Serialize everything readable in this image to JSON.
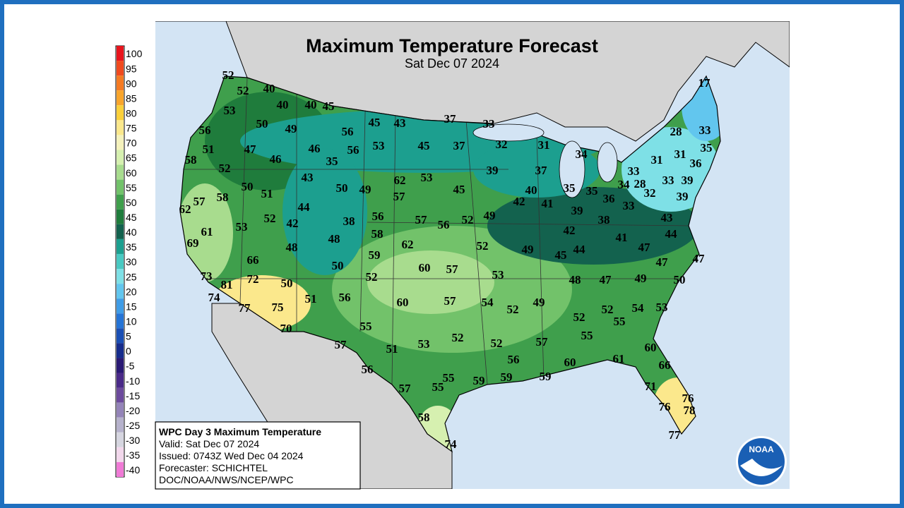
{
  "title": "Maximum Temperature Forecast",
  "subtitle": "Sat Dec 07 2024",
  "legend": {
    "labels": [
      100,
      95,
      90,
      85,
      80,
      75,
      70,
      65,
      60,
      55,
      50,
      45,
      40,
      35,
      30,
      25,
      20,
      15,
      10,
      5,
      0,
      -5,
      -10,
      -15,
      -20,
      -25,
      -30,
      -35,
      -40
    ],
    "colors": [
      "#e8141c",
      "#f04a1e",
      "#f57a22",
      "#f8a52c",
      "#fbd03a",
      "#fbe88c",
      "#f5f2bc",
      "#d6f0b0",
      "#a8dc8e",
      "#72c26a",
      "#3f9f4c",
      "#1f7c3c",
      "#13624e",
      "#1c9f8f",
      "#49c9c2",
      "#7ee0e6",
      "#62c6ee",
      "#3f9ce6",
      "#2574d6",
      "#1a4fb4",
      "#162c8c",
      "#2a1a74",
      "#4a2a88",
      "#6c4a9c",
      "#9484b8",
      "#b6b2cc",
      "#d6d6e0",
      "#f2d8ec",
      "#f07ad6"
    ]
  },
  "temps": [
    52,
    52,
    40,
    40,
    40,
    45,
    53,
    50,
    49,
    56,
    51,
    47,
    46,
    46,
    56,
    45,
    56,
    53,
    35,
    43,
    58,
    52,
    50,
    51,
    50,
    49,
    62,
    53,
    57,
    45,
    43,
    37,
    33,
    45,
    37,
    32,
    31,
    34,
    39,
    37,
    40,
    42,
    41,
    35,
    35,
    36,
    33,
    34,
    28,
    32,
    33,
    39,
    31,
    31,
    36,
    35,
    28,
    33,
    17,
    33,
    39,
    43,
    44,
    39,
    38,
    42,
    41,
    47,
    44,
    45,
    49,
    52,
    49,
    52,
    56,
    57,
    56,
    58,
    62,
    59,
    57,
    60,
    53,
    50,
    48,
    38,
    42,
    48,
    44,
    52,
    53,
    58,
    57,
    62,
    61,
    69,
    66,
    72,
    73,
    81,
    74,
    50,
    77,
    75,
    70,
    51,
    56,
    52,
    55,
    60,
    57,
    54,
    52,
    49,
    48,
    47,
    49,
    50,
    47,
    47,
    52,
    52,
    55,
    54,
    53,
    55,
    52,
    53,
    52,
    57,
    51,
    57,
    56,
    56,
    60,
    61,
    60,
    66,
    57,
    55,
    55,
    59,
    59,
    59,
    71,
    76,
    78,
    76,
    58,
    74,
    77
  ],
  "info": [
    "WPC Day 3 Maximum Temperature",
    "Valid: Sat Dec 07 2024",
    "Issued: 0743Z Wed Dec 04 2024",
    "Forecaster: SCHICHTEL",
    "DOC/NOAA/NWS/NCEP/WPC"
  ],
  "logo": "NOAA"
}
